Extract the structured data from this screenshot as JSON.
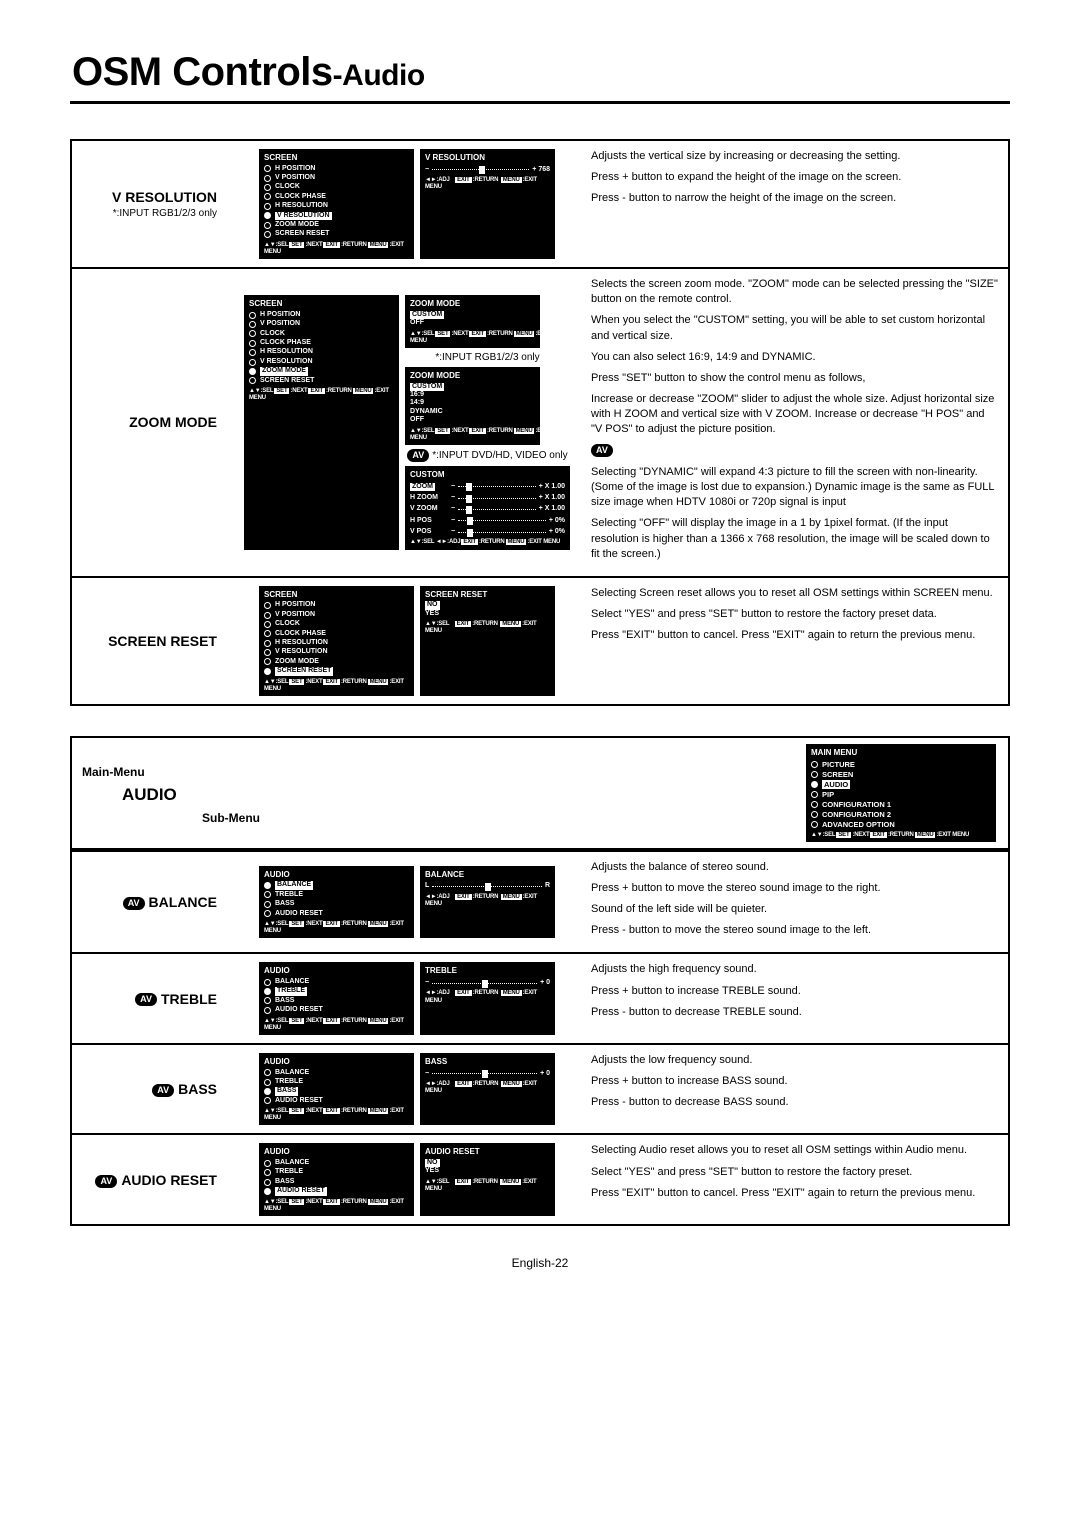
{
  "title_main": "OSM Controls",
  "title_sub": "-Audio",
  "footer": "English-22",
  "screen_menu_items": [
    "H POSITION",
    "V POSITION",
    "CLOCK",
    "CLOCK PHASE",
    "H RESOLUTION",
    "V RESOLUTION",
    "ZOOM MODE",
    "SCREEN RESET"
  ],
  "osd_footer_full": "▲▼:SEL SET:NEXT EXIT:RETURN MENU:EXIT MENU",
  "osd_footer_adj": "◄►:ADJ   EXIT:RETURN MENU:EXIT MENU",
  "vres": {
    "label": "V RESOLUTION",
    "label_note": "*:INPUT RGB1/2/3 only",
    "osd1_title": "SCREEN",
    "osd1_sel": "V RESOLUTION",
    "osd2_title": "V RESOLUTION",
    "osd2_value": "+ 768",
    "desc": [
      "Adjusts the vertical size by increasing or decreasing the setting.",
      "Press + button to expand the height of the image on the screen.",
      "Press - button to narrow the height of the image on the screen."
    ]
  },
  "zoom": {
    "label": "ZOOM MODE",
    "osd1_sel": "ZOOM MODE",
    "osd2_title": "ZOOM MODE",
    "osd2_opts": [
      "CUSTOM",
      "OFF"
    ],
    "note1": "*:INPUT RGB1/2/3 only",
    "osd3_title": "ZOOM MODE",
    "osd3_opts": [
      "CUSTOM",
      "16:9",
      "14:9",
      "DYNAMIC",
      "OFF"
    ],
    "note2": "*:INPUT DVD/HD, VIDEO only",
    "osd4_title": "CUSTOM",
    "osd4_rows": [
      {
        "k": "ZOOM",
        "v": "+ X 1.00"
      },
      {
        "k": "H ZOOM",
        "v": "+ X 1.00"
      },
      {
        "k": "V ZOOM",
        "v": "+ X 1.00"
      },
      {
        "k": "H POS",
        "v": "+ 0%"
      },
      {
        "k": "V POS",
        "v": "+ 0%"
      }
    ],
    "desc": [
      "Selects the screen zoom mode. \"ZOOM\" mode can be selected pressing the \"SIZE\" button on the remote control.",
      "When you select the \"CUSTOM\" setting, you will be able to set custom horizontal and vertical size.",
      "You can also select 16:9, 14:9 and DYNAMIC.",
      "Press \"SET\" button to show the control menu as follows,",
      "Increase or decrease \"ZOOM\" slider to adjust the whole size. Adjust horizontal size with H ZOOM and vertical size with V ZOOM. Increase or decrease \"H POS\" and \"V POS\" to adjust the picture position.",
      "",
      "Selecting \"DYNAMIC\" will expand 4:3 picture to fill the screen with non-linearity. (Some of the image is lost due to expansion.) Dynamic image is the same as FULL size image when HDTV 1080i or 720p signal is input",
      "Selecting \"OFF\" will display the image in a 1 by 1pixel format. (If the input resolution is higher than a 1366 x 768 resolution, the image will be scaled down to fit the screen.)"
    ]
  },
  "sreset": {
    "label": "SCREEN RESET",
    "osd1_sel": "SCREEN RESET",
    "osd2_title": "SCREEN RESET",
    "osd2_opts": [
      "NO",
      "YES"
    ],
    "desc": [
      "Selecting Screen reset allows you to reset all OSM settings within SCREEN menu.",
      "Select \"YES\" and press \"SET\" button to restore the factory preset data.",
      "Press \"EXIT\" button to cancel.  Press \"EXIT\" again to return the previous menu."
    ]
  },
  "audio_header": {
    "main": "Main-Menu",
    "audio": "AUDIO",
    "sub": "Sub-Menu",
    "mainmenu_title": "MAIN MENU",
    "mainmenu_items": [
      "PICTURE",
      "SCREEN",
      "AUDIO",
      "PIP",
      "CONFIGURATION 1",
      "CONFIGURATION 2",
      "ADVANCED OPTION"
    ],
    "mainmenu_sel": "AUDIO"
  },
  "audio_menu_items": [
    "BALANCE",
    "TREBLE",
    "BASS",
    "AUDIO RESET"
  ],
  "balance": {
    "label": "BALANCE",
    "osd1_sel": "BALANCE",
    "osd2_title": "BALANCE",
    "osd2_left": "L",
    "osd2_right": "R",
    "desc": [
      "Adjusts the balance of stereo sound.",
      "Press + button to move the stereo sound image to the right.",
      "Sound of the left side will be quieter.",
      "Press - button to move the stereo sound image to the left."
    ]
  },
  "treble": {
    "label": "TREBLE",
    "osd1_sel": "TREBLE",
    "osd2_title": "TREBLE",
    "osd2_value": "+  0",
    "desc": [
      "Adjusts the high frequency sound.",
      "Press + button to increase TREBLE sound.",
      "Press - button to decrease TREBLE sound."
    ]
  },
  "bass": {
    "label": "BASS",
    "osd1_sel": "BASS",
    "osd2_title": "BASS",
    "osd2_value": "+  0",
    "desc": [
      "Adjusts the low frequency sound.",
      "Press + button to increase BASS sound.",
      "Press - button to decrease BASS sound."
    ]
  },
  "areset": {
    "label": "AUDIO RESET",
    "osd1_sel": "AUDIO RESET",
    "osd2_title": "AUDIO RESET",
    "osd2_opts": [
      "NO",
      "YES"
    ],
    "desc": [
      "Selecting Audio reset allows you to reset all OSM settings within Audio menu.",
      "Select \"YES\" and press \"SET\" button to restore the factory preset.",
      "Press \"EXIT\" button to cancel.  Press \"EXIT\" again to return the previous menu."
    ]
  }
}
